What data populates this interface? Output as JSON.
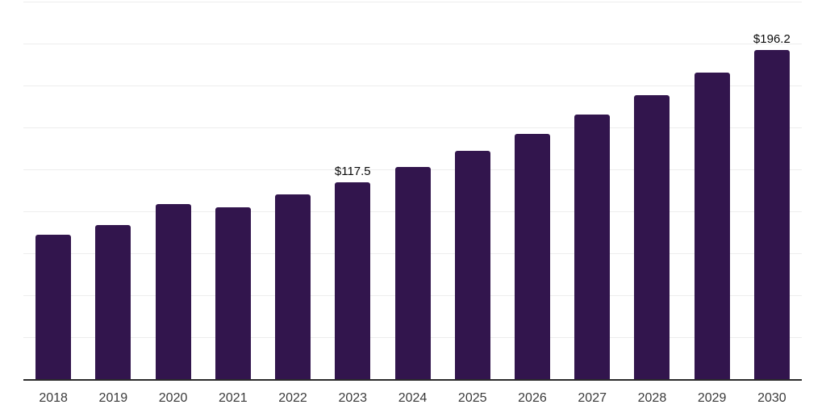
{
  "chart_data": {
    "type": "bar",
    "title": "",
    "xlabel": "",
    "ylabel": "",
    "categories": [
      "2018",
      "2019",
      "2020",
      "2021",
      "2022",
      "2023",
      "2024",
      "2025",
      "2026",
      "2027",
      "2028",
      "2029",
      "2030"
    ],
    "values": [
      86.0,
      92.0,
      104.3,
      102.5,
      110.1,
      117.5,
      126.4,
      136.3,
      146.4,
      157.9,
      169.4,
      182.7,
      196.2
    ],
    "value_labels": {
      "2023": "$117.5",
      "2030": "$196.2"
    },
    "ylim": [
      0,
      225
    ],
    "grid_step": 25,
    "grid": "horizontal gridlines, no y-axis tick labels",
    "legend": "none",
    "colors": {
      "bar": "#32154d",
      "axis": "#2b2b2b",
      "grid": "#ededed",
      "value_label": "#0a0a0a",
      "tick_label": "#3a3a3a",
      "background": "#ffffff"
    }
  }
}
